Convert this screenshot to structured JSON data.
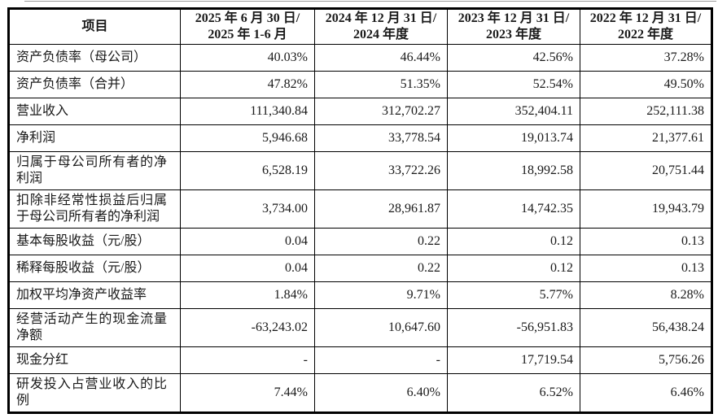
{
  "colors": {
    "background": "#ffffff",
    "border": "#000000",
    "text": "#1a1a1a"
  },
  "table": {
    "header": {
      "item_label": "项目",
      "period_columns": [
        "2025 年 6 月 30 日/\n2025 年 1-6 月",
        "2024 年 12 月 31 日/\n2024 年度",
        "2023 年 12 月 31 日/\n2023 年度",
        "2022 年 12 月 31 日/\n2022 年度"
      ]
    },
    "rows": [
      {
        "label": "资产负债率（母公司）",
        "values": [
          "40.03%",
          "46.44%",
          "42.56%",
          "37.28%"
        ]
      },
      {
        "label": "资产负债率（合并）",
        "values": [
          "47.82%",
          "51.35%",
          "52.54%",
          "49.50%"
        ]
      },
      {
        "label": "营业收入",
        "values": [
          "111,340.84",
          "312,702.27",
          "352,404.11",
          "252,111.38"
        ]
      },
      {
        "label": "净利润",
        "values": [
          "5,946.68",
          "33,778.54",
          "19,013.74",
          "21,377.61"
        ]
      },
      {
        "label": "归属于母公司所有者的净利润",
        "values": [
          "6,528.19",
          "33,722.26",
          "18,992.58",
          "20,751.44"
        ]
      },
      {
        "label": "扣除非经常性损益后归属于母公司所有者的净利润",
        "values": [
          "3,734.00",
          "28,961.87",
          "14,742.35",
          "19,943.79"
        ]
      },
      {
        "label": "基本每股收益（元/股）",
        "values": [
          "0.04",
          "0.22",
          "0.12",
          "0.13"
        ]
      },
      {
        "label": "稀释每股收益（元/股）",
        "values": [
          "0.04",
          "0.22",
          "0.12",
          "0.13"
        ]
      },
      {
        "label": "加权平均净资产收益率",
        "values": [
          "1.84%",
          "9.71%",
          "5.77%",
          "8.28%"
        ]
      },
      {
        "label": "经营活动产生的现金流量净额",
        "values": [
          "-63,243.02",
          "10,647.60",
          "-56,951.83",
          "56,438.24"
        ]
      },
      {
        "label": "现金分红",
        "values": [
          "-",
          "-",
          "17,719.54",
          "5,756.26"
        ]
      },
      {
        "label": "研发投入占营业收入的比例",
        "values": [
          "7.44%",
          "6.40%",
          "6.52%",
          "6.46%"
        ]
      }
    ]
  }
}
